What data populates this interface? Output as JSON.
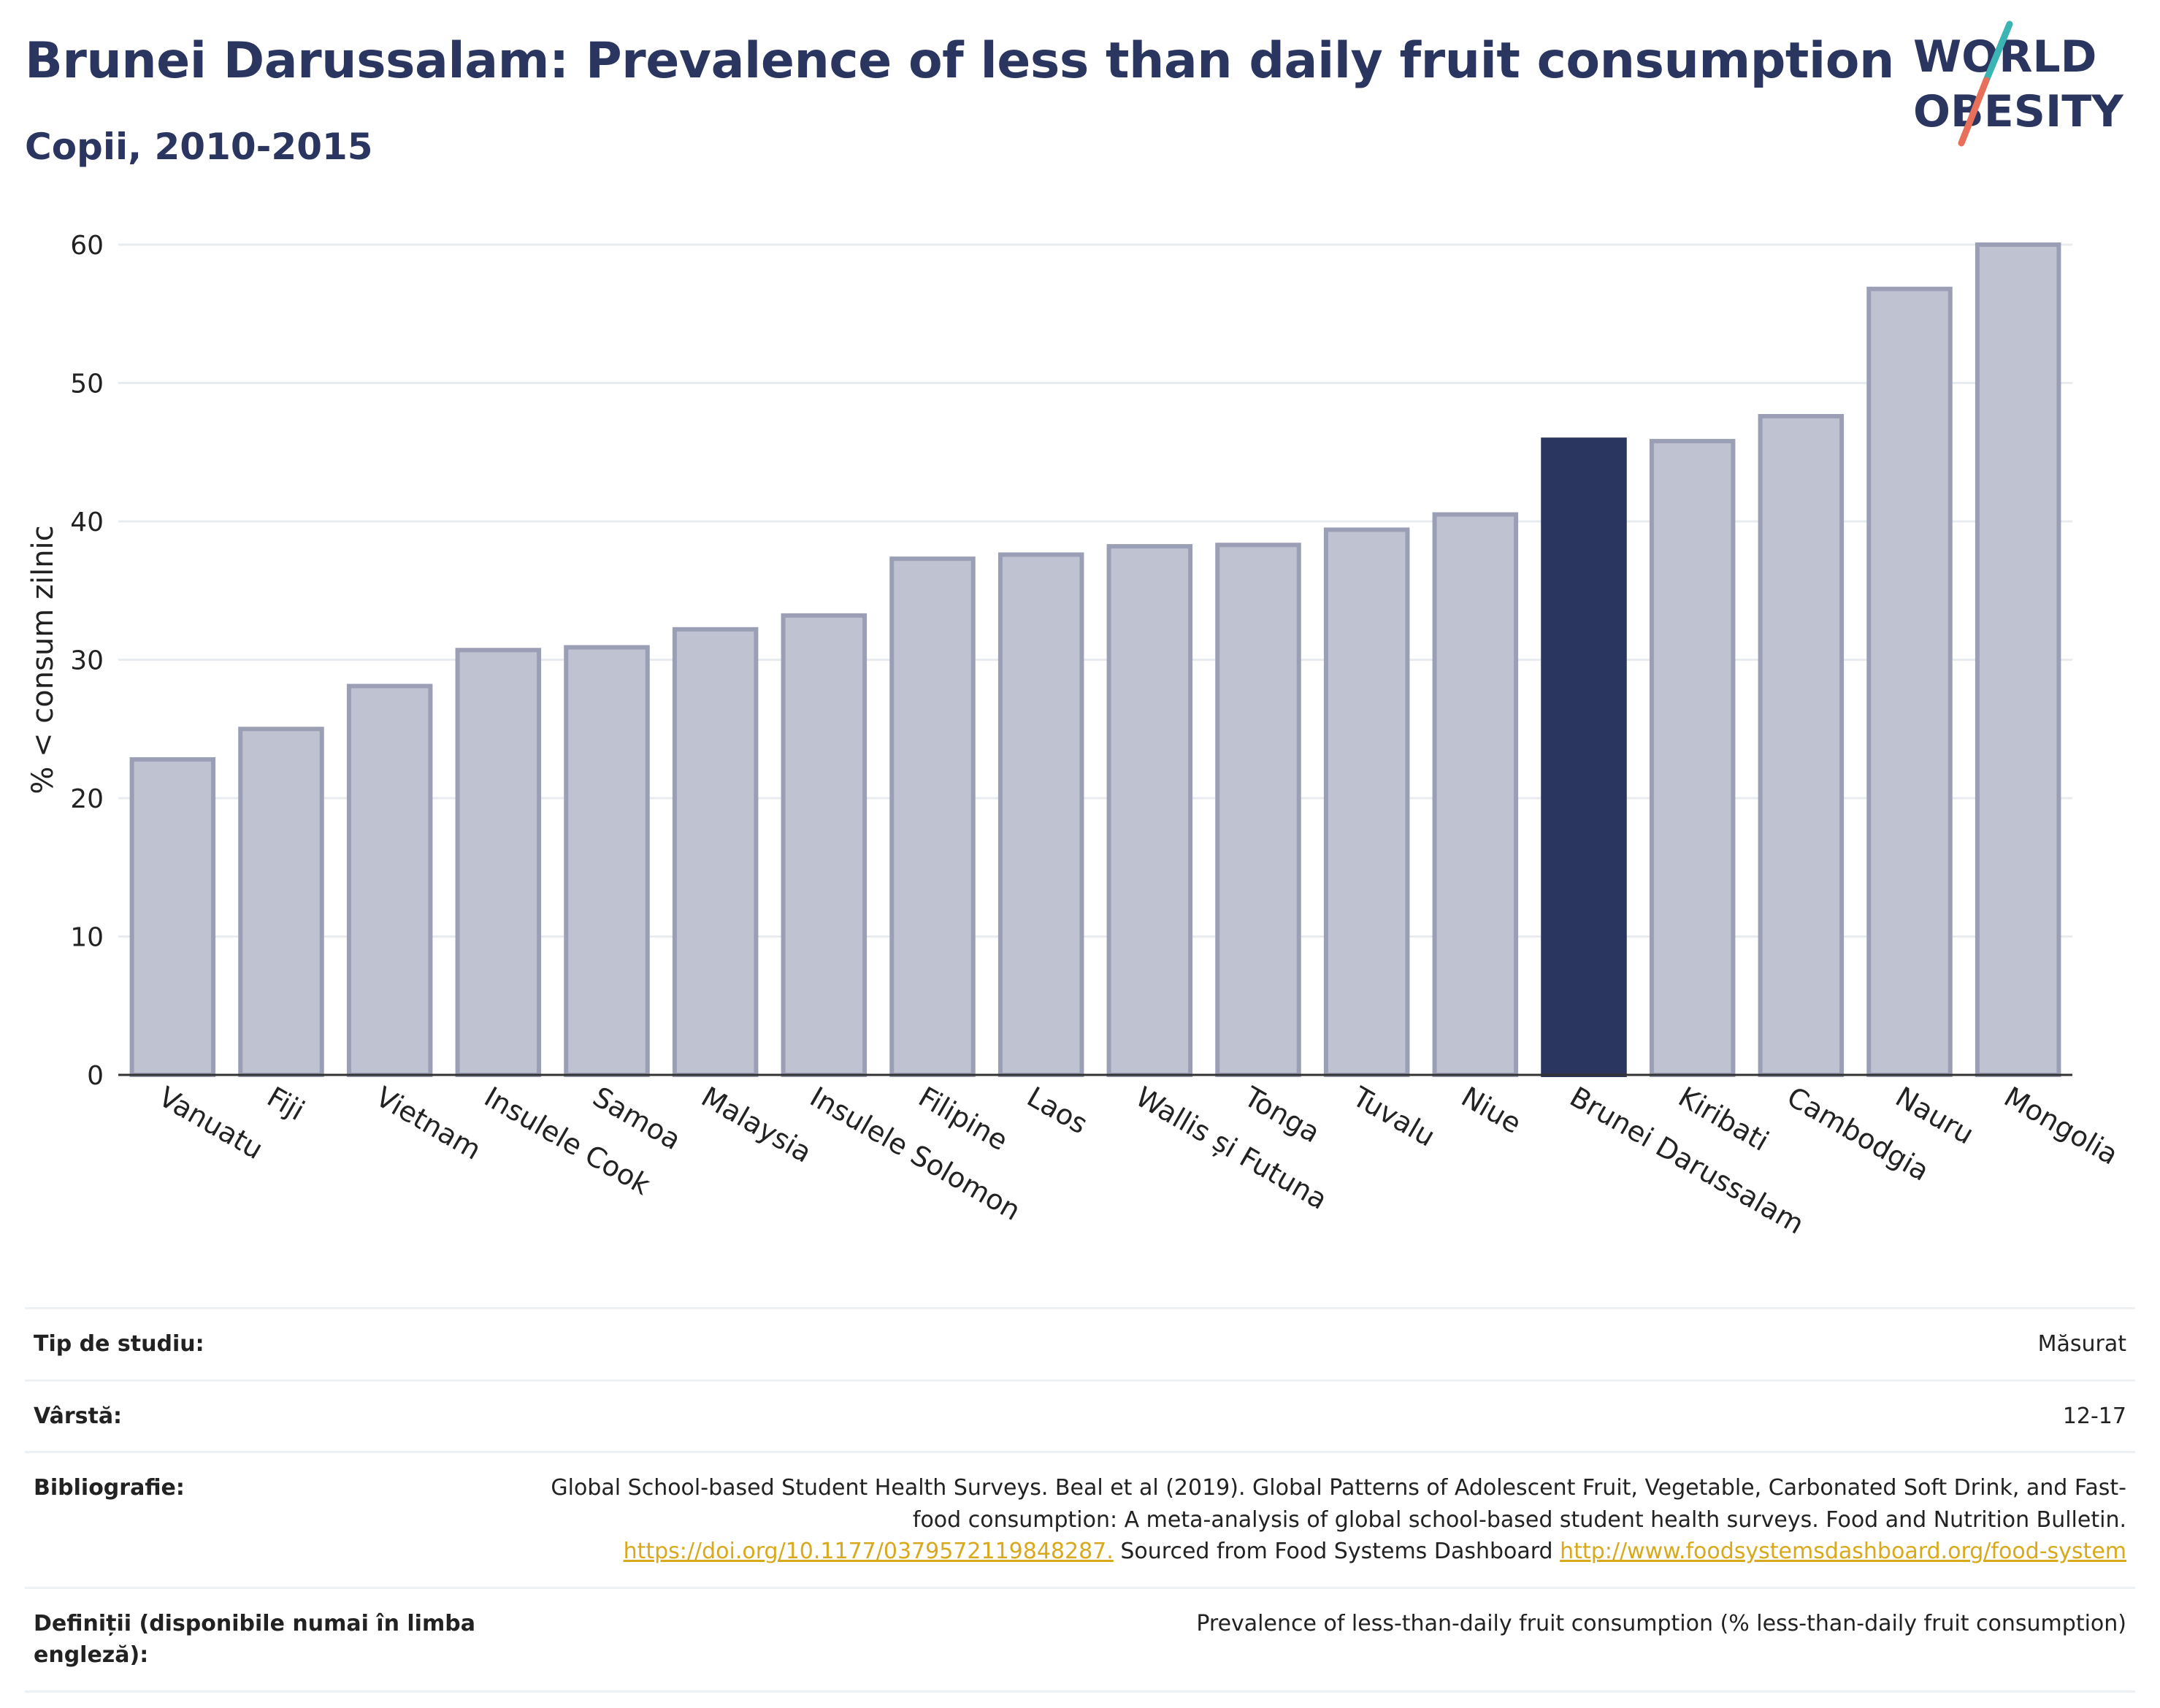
{
  "header": {
    "title": "Brunei Darussalam: Prevalence of less than daily fruit consumption",
    "subtitle": "Copii, 2010-2015"
  },
  "logo": {
    "line1": "WORLD",
    "line2": "OBESITY",
    "accent_teal": "#3bb4b4",
    "accent_coral": "#e8705a"
  },
  "colors": {
    "bar": "#bfc2d0",
    "bar_stroke": "#9a9fb6",
    "highlight": "#2b3660",
    "grid": "#e8ebef",
    "axis": "#333333"
  },
  "chart_data": {
    "type": "bar",
    "ylabel": "% < consum zilnic",
    "ylim": [
      0,
      60
    ],
    "yticks": [
      0,
      10,
      20,
      30,
      40,
      50,
      60
    ],
    "grid": true,
    "highlight": "Brunei Darussalam",
    "categories": [
      "Vanuatu",
      "Fiji",
      "Vietnam",
      "Insulele Cook",
      "Samoa",
      "Malaysia",
      "Insulele Solomon",
      "Filipine",
      "Laos",
      "Wallis și Futuna",
      "Tonga",
      "Tuvalu",
      "Niue",
      "Brunei Darussalam",
      "Kiribati",
      "Cambodgia",
      "Nauru",
      "Mongolia"
    ],
    "values": [
      22.8,
      25.0,
      28.1,
      30.7,
      30.9,
      32.2,
      33.2,
      37.3,
      37.6,
      38.2,
      38.3,
      39.4,
      40.5,
      45.9,
      45.8,
      47.6,
      56.8,
      60.0
    ]
  },
  "meta": {
    "study_type_label": "Tip de studiu:",
    "study_type_value": "Măsurat",
    "age_label": "Vârstă:",
    "age_value": "12-17",
    "biblio_label": "Bibliografie:",
    "biblio_text1": "Global School-based Student Health Surveys. Beal et al (2019). Global Patterns of Adolescent Fruit, Vegetable, Carbonated Soft Drink, and Fast-food consumption: A meta-analysis of global school-based student health surveys. Food and Nutrition Bulletin.",
    "biblio_link1": "https://doi.org/10.1177/0379572119848287.",
    "biblio_text2": "Sourced from Food Systems Dashboard",
    "biblio_link2": "http://www.foodsystemsdashboard.org/food-system",
    "def_label": "Definiții (disponibile numai în limba engleză):",
    "def_value": "Prevalence of less-than-daily fruit consumption (% less-than-daily fruit consumption)"
  }
}
